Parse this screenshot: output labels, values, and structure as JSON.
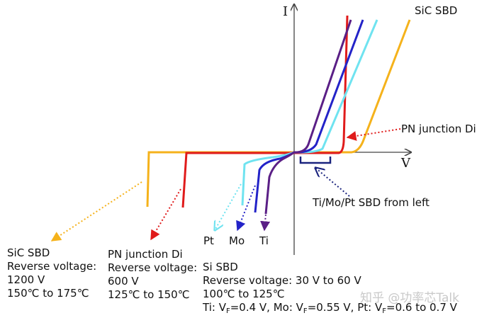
{
  "axes": {
    "y_label": "I",
    "x_label": "V"
  },
  "labels": {
    "sic_top": "SiC SBD",
    "pn_junction": "PN junction Di",
    "ti_mo_pt": "Ti/Mo/Pt SBD from left",
    "pt": "Pt",
    "mo": "Mo",
    "ti": "Ti"
  },
  "blocks": {
    "sic": {
      "title": "SiC SBD",
      "line1": "Reverse voltage:",
      "line2": "1200 V",
      "line3": "150℃ to 175℃"
    },
    "pn": {
      "title": "PN junction Di",
      "line1": "Reverse voltage:",
      "line2": "600 V",
      "line3": "125℃ to 150℃"
    },
    "si": {
      "title": "Si SBD",
      "line1": "Reverse voltage: 30 V to 60 V",
      "line2": "100℃ to 125℃",
      "ti_pre": "Ti: V",
      "ti_val": "=0.4 V,  Mo: V",
      "mo_val": "=0.55 V,  Pt: V",
      "pt_val": "=0.6 to 0.7 V",
      "sub_f": "F"
    }
  },
  "watermark": "知乎 @功率芯Talk",
  "colors": {
    "sic": "#f5b21b",
    "pn": "#e01b1b",
    "pt": "#6fe3f0",
    "mo": "#2323c8",
    "ti": "#5a1f86",
    "axis": "#444444",
    "bracket": "#1a237e"
  }
}
